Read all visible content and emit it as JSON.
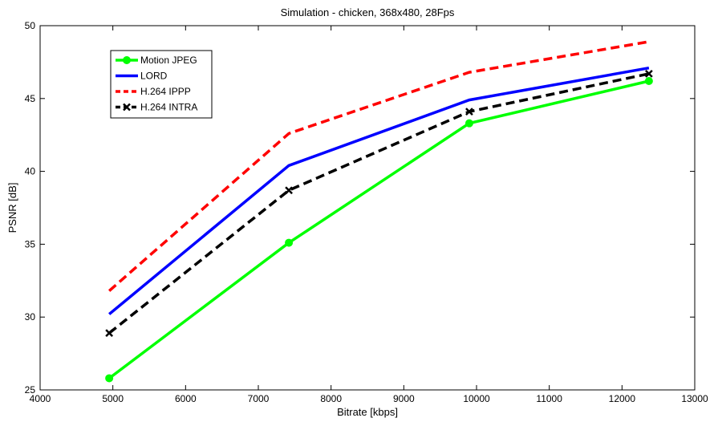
{
  "chart_data": {
    "type": "line",
    "title": "Simulation - chicken, 368x480, 28Fps",
    "xlabel": "Bitrate [kbps]",
    "ylabel": "PSNR [dB]",
    "xlim": [
      4000,
      13000
    ],
    "ylim": [
      25,
      50
    ],
    "xticks": [
      4000,
      5000,
      6000,
      7000,
      8000,
      9000,
      10000,
      11000,
      12000,
      13000
    ],
    "yticks": [
      25,
      30,
      35,
      40,
      45,
      50
    ],
    "grid": false,
    "legend_position": "top-left",
    "series": [
      {
        "name": "Motion JPEG",
        "color": "#00ff00",
        "dash": "solid",
        "marker": "circle",
        "points": [
          [
            4950,
            25.8
          ],
          [
            7420,
            35.1
          ],
          [
            9900,
            43.3
          ],
          [
            12370,
            46.2
          ]
        ]
      },
      {
        "name": "LORD",
        "color": "#0000ff",
        "dash": "solid",
        "marker": "none",
        "points": [
          [
            4950,
            30.2
          ],
          [
            7420,
            40.4
          ],
          [
            9900,
            44.9
          ],
          [
            12370,
            47.1
          ]
        ]
      },
      {
        "name": "H.264 IPPP",
        "color": "#ff0000",
        "dash": "dashed",
        "marker": "none",
        "points": [
          [
            4950,
            31.8
          ],
          [
            7420,
            42.6
          ],
          [
            9900,
            46.8
          ],
          [
            12370,
            48.9
          ]
        ]
      },
      {
        "name": "H.264 INTRA",
        "color": "#000000",
        "dash": "dashed",
        "marker": "x",
        "points": [
          [
            4950,
            28.9
          ],
          [
            7420,
            38.7
          ],
          [
            9900,
            44.1
          ],
          [
            12370,
            46.7
          ]
        ]
      }
    ]
  }
}
